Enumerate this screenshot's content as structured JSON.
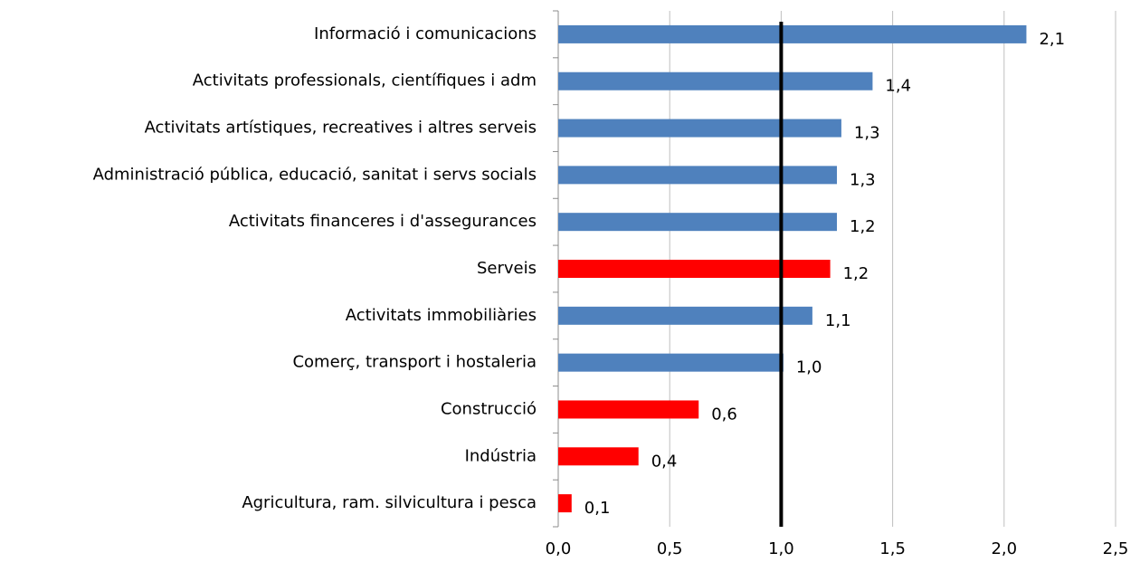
{
  "chart_data": {
    "type": "hbar",
    "categories": [
      "Informació i comunicacions",
      "Activitats professionals, científiques i adm",
      "Activitats artístiques, recreatives i altres serveis",
      "Administració pública, educació, sanitat i servs socials",
      "Activitats financeres i d'assegurances",
      "Serveis",
      "Activitats immobiliàries",
      "Comerç, transport i hostaleria",
      "Construcció",
      "Indústria",
      "Agricultura, ram. silvicultura i pesca"
    ],
    "values": [
      2.1,
      1.41,
      1.27,
      1.25,
      1.25,
      1.22,
      1.14,
      1.01,
      0.63,
      0.36,
      0.06
    ],
    "value_labels": [
      "2,1",
      "1,4",
      "1,3",
      "1,3",
      "1,2",
      "1,2",
      "1,1",
      "1,0",
      "0,6",
      "0,4",
      "0,1"
    ],
    "colors": [
      "#4f81bd",
      "#4f81bd",
      "#4f81bd",
      "#4f81bd",
      "#4f81bd",
      "#ff0000",
      "#4f81bd",
      "#4f81bd",
      "#ff0000",
      "#ff0000",
      "#ff0000"
    ],
    "xlim": [
      0,
      2.5
    ],
    "xticks": [
      {
        "value": 0,
        "label": "0,0"
      },
      {
        "value": 0.5,
        "label": "0,5"
      },
      {
        "value": 1,
        "label": "1,0"
      },
      {
        "value": 1.5,
        "label": "1,5"
      },
      {
        "value": 2,
        "label": "2,0"
      },
      {
        "value": 2.5,
        "label": "2,5"
      }
    ],
    "grid": true,
    "reference_line": 1
  }
}
